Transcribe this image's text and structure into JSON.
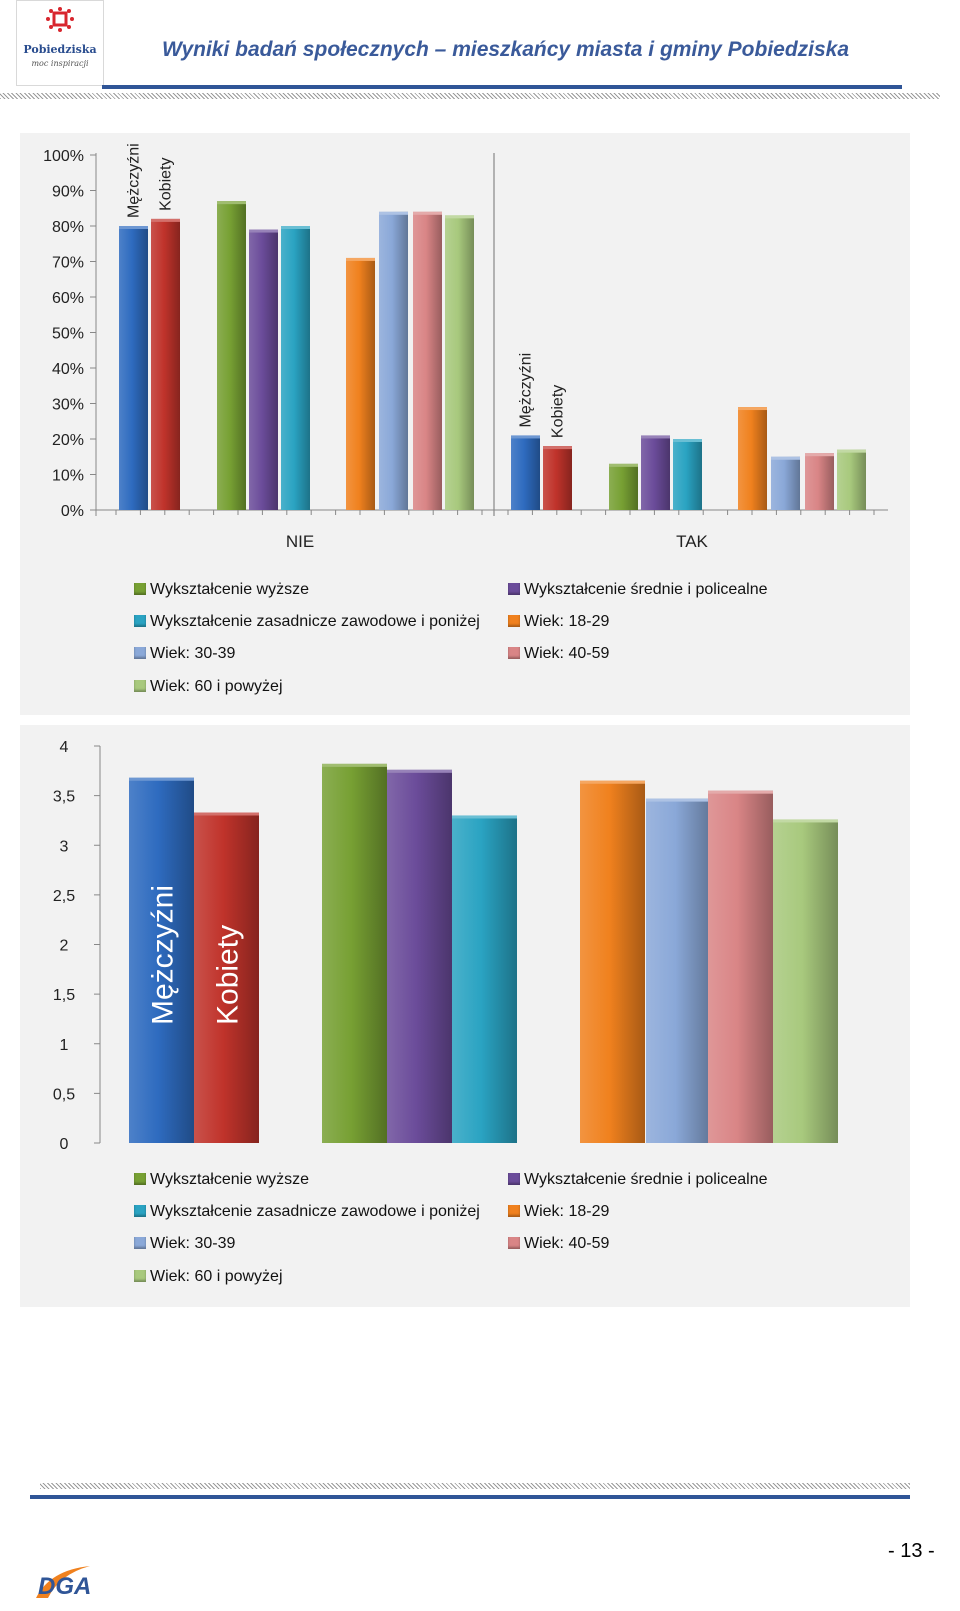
{
  "header": {
    "logo_name": "Pobiedziska",
    "logo_tagline": "moc inspiracji",
    "title": "Wyniki badań społecznych – mieszkańcy miasta i gminy Pobiedziska"
  },
  "footer": {
    "page_number": "- 13 -",
    "logo_text": "DGA"
  },
  "legend": [
    {
      "label": "Wykształcenie wyższe",
      "color": "#77a033"
    },
    {
      "label": "Wykształcenie średnie i policealne",
      "color": "#6b4c9a"
    },
    {
      "label": "Wykształcenie zasadnicze zawodowe i poniżej",
      "color": "#2aa3c2"
    },
    {
      "label": "Wiek: 18-29",
      "color": "#f0811e"
    },
    {
      "label": "Wiek: 30-39",
      "color": "#8aa8d8"
    },
    {
      "label": "Wiek: 40-59",
      "color": "#d98586"
    },
    {
      "label": "Wiek: 60 i powyżej",
      "color": "#a8c97d"
    }
  ],
  "chart_data": [
    {
      "type": "bar",
      "categories": [
        "NIE",
        "TAK"
      ],
      "ylim": [
        0,
        100
      ],
      "yticks": [
        "0%",
        "10%",
        "20%",
        "30%",
        "40%",
        "50%",
        "60%",
        "70%",
        "80%",
        "90%",
        "100%"
      ],
      "bar_text_labels": [
        "Mężczyźni",
        "Kobiety"
      ],
      "series": [
        {
          "name": "Mężczyźni",
          "color": "#2e6bbf",
          "values": [
            80,
            21
          ]
        },
        {
          "name": "Kobiety",
          "color": "#c0332b",
          "values": [
            82,
            18
          ]
        },
        {
          "name": "Wykształcenie wyższe",
          "color": "#77a033",
          "values": [
            87,
            13
          ]
        },
        {
          "name": "Wykształcenie średnie i policealne",
          "color": "#6b4c9a",
          "values": [
            79,
            21
          ]
        },
        {
          "name": "Wykształcenie zasadnicze zawodowe i poniżej",
          "color": "#2aa3c2",
          "values": [
            80,
            20
          ]
        },
        {
          "name": "Wiek: 18-29",
          "color": "#f0811e",
          "values": [
            71,
            29
          ]
        },
        {
          "name": "Wiek: 30-39",
          "color": "#8aa8d8",
          "values": [
            84,
            15
          ]
        },
        {
          "name": "Wiek: 40-59",
          "color": "#d98586",
          "values": [
            84,
            16
          ]
        },
        {
          "name": "Wiek: 60 i powyżej",
          "color": "#a8c97d",
          "values": [
            83,
            17
          ]
        }
      ],
      "legend_position": "bottom"
    },
    {
      "type": "bar",
      "ylim": [
        0,
        4
      ],
      "yticks": [
        "0",
        "0,5",
        "1",
        "1,5",
        "2",
        "2,5",
        "3",
        "3,5",
        "4"
      ],
      "bar_text_labels": [
        "Mężczyźni",
        "Kobiety"
      ],
      "series": [
        {
          "name": "Mężczyźni",
          "color": "#2e6bbf",
          "value": 3.68
        },
        {
          "name": "Kobiety",
          "color": "#c0332b",
          "value": 3.33
        },
        {
          "name": "Wykształcenie wyższe",
          "color": "#77a033",
          "value": 3.82
        },
        {
          "name": "Wykształcenie średnie i policealne",
          "color": "#6b4c9a",
          "value": 3.76
        },
        {
          "name": "Wykształcenie zasadnicze zawodowe i poniżej",
          "color": "#2aa3c2",
          "value": 3.3
        },
        {
          "name": "Wiek: 18-29",
          "color": "#f0811e",
          "value": 3.65
        },
        {
          "name": "Wiek: 30-39",
          "color": "#8aa8d8",
          "value": 3.47
        },
        {
          "name": "Wiek: 40-59",
          "color": "#d98586",
          "value": 3.55
        },
        {
          "name": "Wiek: 60 i powyżej",
          "color": "#a8c97d",
          "value": 3.26
        }
      ],
      "legend_position": "bottom"
    }
  ]
}
